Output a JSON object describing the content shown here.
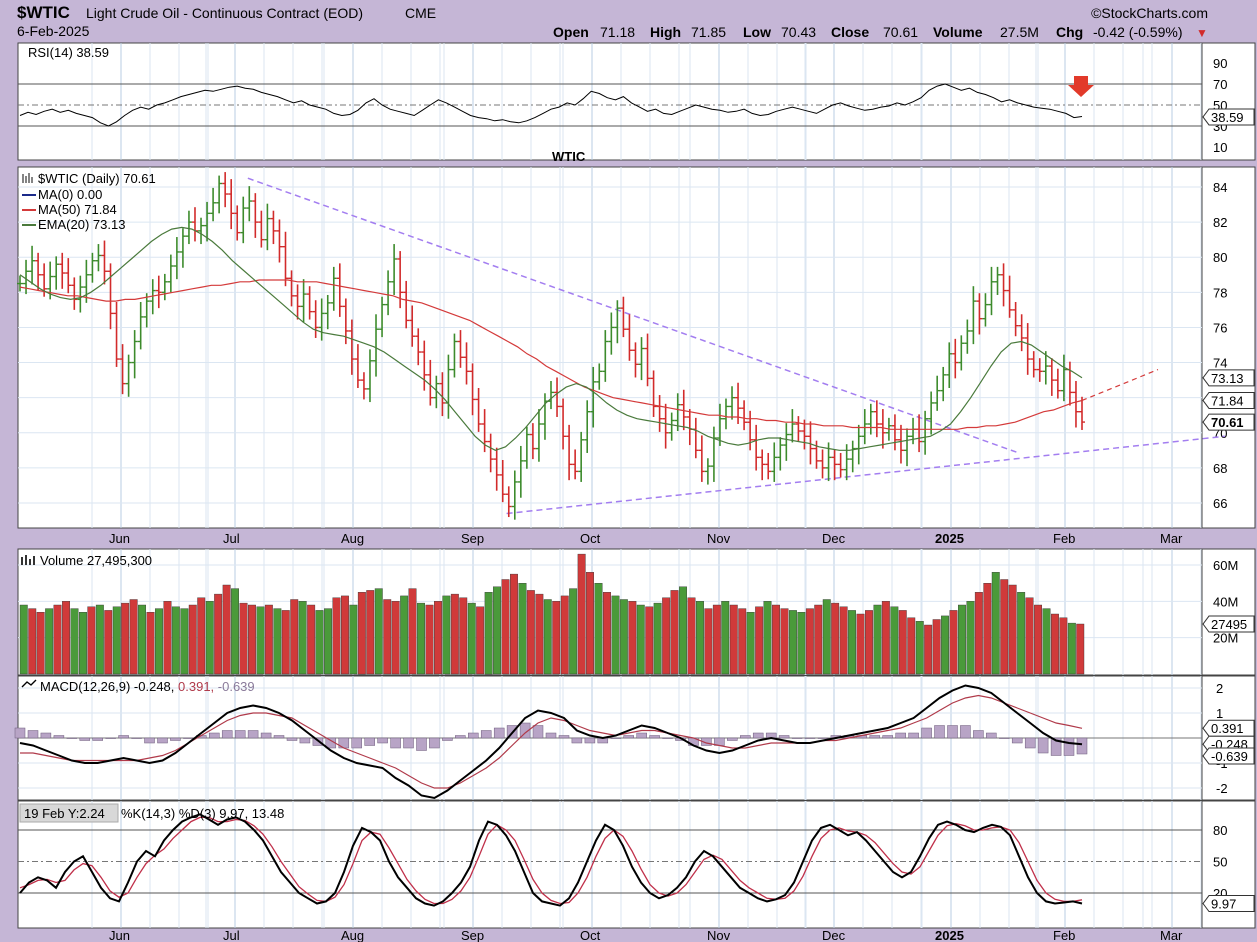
{
  "header": {
    "symbol": "$WTIC",
    "name": "Light Crude Oil - Continuous Contract (EOD)",
    "exchange": "CME",
    "brand": "©StockCharts.com",
    "date": "6-Feb-2025",
    "open_label": "Open",
    "open": "71.18",
    "high_label": "High",
    "high": "71.85",
    "low_label": "Low",
    "low": "70.43",
    "close_label": "Close",
    "close": "70.61",
    "volume_label": "Volume",
    "volume": "27.5M",
    "chg_label": "Chg",
    "chg": "-0.42 (-0.59%)",
    "chg_arrow": "▼"
  },
  "colors": {
    "up": "#3d8b2c",
    "down": "#d22b2b",
    "ma50": "#d43a3a",
    "ema20": "#4a7a3c",
    "trend": "#a37ef0",
    "rsi": "#000000",
    "watermark": "#5b8fd1",
    "signal": "#e23a2a"
  },
  "watermark": "WTIC",
  "chart_data": [
    {
      "panel": "rsi",
      "type": "line",
      "title": "RSI(14) 38.59",
      "last_value": "38.59",
      "ylim": [
        0,
        100
      ],
      "y_ticks": [
        "90",
        "70",
        "50",
        "30",
        "10"
      ],
      "reference_lines": [
        70,
        50,
        30
      ],
      "signal": "down-arrow",
      "values": [
        40,
        43,
        41,
        44,
        46,
        43,
        45,
        42,
        40,
        38,
        33,
        30,
        34,
        40,
        45,
        48,
        46,
        50,
        52,
        55,
        58,
        60,
        62,
        64,
        63,
        65,
        67,
        68,
        66,
        65,
        62,
        60,
        58,
        55,
        52,
        54,
        50,
        48,
        46,
        42,
        40,
        41,
        45,
        52,
        56,
        50,
        46,
        44,
        42,
        40,
        45,
        50,
        55,
        52,
        48,
        44,
        40,
        38,
        37,
        35,
        36,
        34,
        33,
        35,
        38,
        42,
        46,
        48,
        52,
        50,
        56,
        63,
        61,
        57,
        55,
        58,
        52,
        48,
        44,
        46,
        42,
        41,
        44,
        47,
        50,
        48,
        46,
        45,
        43,
        44,
        46,
        42,
        40,
        41,
        44,
        46,
        48,
        46,
        44,
        42,
        46,
        50,
        52,
        49,
        47,
        45,
        46,
        48,
        49,
        52,
        50,
        53,
        57,
        64,
        68,
        70,
        67,
        64,
        66,
        62,
        60,
        57,
        53,
        55,
        52,
        50,
        48,
        47,
        46,
        44,
        42,
        38,
        39
      ],
      "x_start": "2025-05-07",
      "x_end": "2025-02-06"
    },
    {
      "panel": "price",
      "type": "ohlc",
      "title": "$WTIC (Daily) 70.61",
      "legend": [
        "MA(0) 0.00",
        "MA(50) 71.84",
        "EMA(20) 73.13"
      ],
      "ylim": [
        65,
        85
      ],
      "y_ticks": [
        "84",
        "82",
        "80",
        "78",
        "76",
        "74",
        "72",
        "70",
        "68",
        "66"
      ],
      "last_labels": {
        "ema20": "73.13",
        "ma50": "71.84",
        "close": "70.61"
      },
      "x_labels": [
        "Jun",
        "Jul",
        "Aug",
        "Sep",
        "Oct",
        "Nov",
        "Dec",
        "2025",
        "Feb",
        "Mar"
      ],
      "closes": [
        78.5,
        79.2,
        79.8,
        79.0,
        78.2,
        78.9,
        79.6,
        79.1,
        78.4,
        77.6,
        78.3,
        79.0,
        79.8,
        80.1,
        79.2,
        76.8,
        74.2,
        72.8,
        74.0,
        75.2,
        76.6,
        77.5,
        78.1,
        78.0,
        78.6,
        79.5,
        80.3,
        81.2,
        82.0,
        81.5,
        81.8,
        82.5,
        83.1,
        84.2,
        83.6,
        82.5,
        81.4,
        82.8,
        83.2,
        82.0,
        81.0,
        82.2,
        81.5,
        80.6,
        78.8,
        77.8,
        77.2,
        77.9,
        76.9,
        76.0,
        76.8,
        77.4,
        78.8,
        77.2,
        75.8,
        74.2,
        73.0,
        72.5,
        74.1,
        75.9,
        77.3,
        78.6,
        79.9,
        78.0,
        76.4,
        75.5,
        74.6,
        73.3,
        72.0,
        72.8,
        71.7,
        73.6,
        75.2,
        74.3,
        73.5,
        71.9,
        70.5,
        69.5,
        68.5,
        67.6,
        66.5,
        65.8,
        67.2,
        68.4,
        69.9,
        69.1,
        70.5,
        71.8,
        72.3,
        71.5,
        69.8,
        68.2,
        67.8,
        69.6,
        71.2,
        72.9,
        73.5,
        75.2,
        76.0,
        77.1,
        75.9,
        74.7,
        73.9,
        74.8,
        73.1,
        71.5,
        70.8,
        70.0,
        70.7,
        71.6,
        70.9,
        70.2,
        69.0,
        67.8,
        68.1,
        69.7,
        70.8,
        71.5,
        72.0,
        71.4,
        70.6,
        69.6,
        68.6,
        68.2,
        67.8,
        68.6,
        69.3,
        69.9,
        70.5,
        70.1,
        69.8,
        69.1,
        68.4,
        68.0,
        68.6,
        68.2,
        67.9,
        68.5,
        69.1,
        69.8,
        70.5,
        71.2,
        70.5,
        70.0,
        70.4,
        69.6,
        69.0,
        69.8,
        70.2,
        69.5,
        70.8,
        71.7,
        72.4,
        73.3,
        74.5,
        74.0,
        75.1,
        75.8,
        77.5,
        76.5,
        77.3,
        78.6,
        79.0,
        78.1,
        77.0,
        76.1,
        75.4,
        74.2,
        73.6,
        73.5,
        73.8,
        73.0,
        72.4,
        73.6,
        72.3,
        71.2,
        70.61
      ],
      "ma50": [
        78.3,
        78.2,
        78.1,
        78.0,
        77.9,
        77.8,
        77.8,
        77.7,
        77.6,
        77.5,
        77.5,
        77.6,
        77.6,
        77.7,
        77.8,
        77.9,
        78.0,
        78.1,
        78.2,
        78.3,
        78.4,
        78.4,
        78.5,
        78.6,
        78.6,
        78.7,
        78.7,
        78.7,
        78.7,
        78.6,
        78.6,
        78.6,
        78.5,
        78.4,
        78.3,
        78.2,
        78.1,
        78.0,
        77.9,
        77.8,
        77.6,
        77.5,
        77.4,
        77.2,
        77.0,
        76.8,
        76.6,
        76.4,
        76.1,
        75.8,
        75.5,
        75.2,
        74.9,
        74.5,
        74.2,
        73.8,
        73.5,
        73.2,
        72.9,
        72.6,
        72.4,
        72.2,
        72.0,
        71.9,
        71.8,
        71.7,
        71.6,
        71.5,
        71.4,
        71.3,
        71.2,
        71.1,
        71.0,
        71.0,
        70.9,
        70.9,
        70.8,
        70.8,
        70.7,
        70.7,
        70.6,
        70.6,
        70.5,
        70.5,
        70.4,
        70.4,
        70.4,
        70.3,
        70.3,
        70.3,
        70.3,
        70.2,
        70.2,
        70.2,
        70.2,
        70.2,
        70.2,
        70.2,
        70.2,
        70.3,
        70.3,
        70.4,
        70.4,
        70.5,
        70.6,
        70.8,
        71.0,
        71.2,
        71.3,
        71.5,
        71.7,
        71.84
      ],
      "ema20": [
        79.0,
        78.6,
        78.2,
        77.9,
        77.7,
        77.6,
        77.7,
        78.0,
        78.4,
        78.9,
        79.4,
        79.9,
        80.4,
        80.9,
        81.3,
        81.6,
        81.7,
        81.6,
        81.3,
        80.9,
        80.4,
        79.8,
        79.3,
        78.8,
        78.3,
        77.8,
        77.3,
        76.8,
        76.3,
        75.9,
        75.7,
        75.6,
        75.5,
        75.3,
        75.1,
        74.9,
        74.6,
        74.2,
        73.8,
        73.4,
        73.0,
        72.5,
        71.9,
        71.2,
        70.5,
        69.8,
        69.3,
        69.0,
        69.2,
        69.7,
        70.3,
        71.0,
        71.7,
        72.2,
        72.6,
        72.8,
        72.6,
        72.2,
        71.7,
        71.3,
        71.0,
        70.8,
        70.7,
        70.6,
        70.5,
        70.4,
        70.3,
        70.1,
        69.8,
        69.6,
        69.4,
        69.3,
        69.4,
        69.6,
        69.7,
        69.7,
        69.6,
        69.5,
        69.4,
        69.2,
        69.1,
        69.0,
        69.0,
        69.1,
        69.2,
        69.3,
        69.4,
        69.5,
        69.6,
        69.7,
        69.8,
        70.1,
        70.5,
        71.2,
        72.0,
        72.9,
        73.8,
        74.6,
        75.1,
        75.2,
        75.0,
        74.6,
        74.2,
        73.8,
        73.5,
        73.13
      ],
      "trendlines": [
        {
          "from": [
            "2024-07-05",
            84.5
          ],
          "to": [
            "2025-01-20",
            68.9
          ]
        },
        {
          "from": [
            "2024-09-10",
            65.4
          ],
          "to": [
            "2025-03-15",
            69.8
          ]
        }
      ]
    },
    {
      "panel": "volume",
      "type": "bar",
      "title": "Volume 27,495,300",
      "last_label": "27495",
      "ylim": [
        0,
        70
      ],
      "y_ticks": [
        "60M",
        "40M",
        "20M"
      ],
      "values_millions": [
        38,
        36,
        34,
        36,
        38,
        40,
        36,
        34,
        37,
        38,
        35,
        37,
        39,
        41,
        38,
        34,
        36,
        40,
        37,
        36,
        38,
        42,
        40,
        44,
        49,
        47,
        39,
        38,
        37,
        38,
        36,
        35,
        41,
        40,
        38,
        35,
        36,
        42,
        43,
        38,
        45,
        46,
        47,
        41,
        40,
        43,
        47,
        39,
        38,
        40,
        43,
        44,
        42,
        39,
        37,
        45,
        48,
        52,
        55,
        50,
        46,
        44,
        41,
        40,
        43,
        47,
        66,
        56,
        50,
        45,
        43,
        41,
        40,
        38,
        37,
        39,
        42,
        46,
        48,
        42,
        40,
        36,
        38,
        40,
        38,
        36,
        34,
        37,
        40,
        38,
        36,
        35,
        34,
        36,
        38,
        41,
        39,
        37,
        35,
        33,
        35,
        38,
        40,
        37,
        35,
        31,
        29,
        27,
        30,
        32,
        35,
        38,
        40,
        45,
        50,
        56,
        52,
        49,
        45,
        42,
        38,
        36,
        33,
        31,
        28,
        27.5
      ],
      "up_down": "uddudduudududdududuuddudduddududduduuddudduddududdudduduuddudduddudduduudududdududduddududduuddudduddududdudduduuddudduddudduduududu"
    },
    {
      "panel": "macd",
      "type": "line",
      "title": "MACD(12,26,9) -0.248, 0.391, -0.639",
      "legend": [
        "MACD(12,26,9)",
        "-0.248",
        "0.391",
        "-0.639"
      ],
      "last_labels": [
        "0.391",
        "-0.248",
        "-0.639"
      ],
      "ylim": [
        -2.6,
        2.4
      ],
      "y_ticks": [
        "2",
        "1",
        "0",
        "-1",
        "-2"
      ],
      "macd": [
        -0.2,
        -0.3,
        -0.5,
        -0.7,
        -0.9,
        -1.0,
        -1.0,
        -0.9,
        -0.8,
        -0.9,
        -1.0,
        -0.9,
        -0.6,
        -0.2,
        0.2,
        0.6,
        1.0,
        1.2,
        1.3,
        1.2,
        1.0,
        0.7,
        0.3,
        -0.1,
        -0.5,
        -0.8,
        -1.0,
        -1.1,
        -1.2,
        -1.6,
        -1.9,
        -2.3,
        -2.4,
        -2.1,
        -1.7,
        -1.3,
        -0.9,
        -0.4,
        0.2,
        0.8,
        1.1,
        1.0,
        0.8,
        0.3,
        0.1,
        0.0,
        0.1,
        0.3,
        0.5,
        0.4,
        0.2,
        0.0,
        -0.3,
        -0.5,
        -0.6,
        -0.5,
        -0.3,
        -0.1,
        0.0,
        -0.1,
        -0.2,
        -0.2,
        -0.1,
        0.0,
        0.1,
        0.2,
        0.3,
        0.4,
        0.6,
        0.8,
        1.2,
        1.6,
        1.9,
        2.1,
        2.0,
        1.8,
        1.4,
        1.0,
        0.6,
        0.2,
        -0.1,
        -0.2,
        -0.25
      ],
      "signal": [
        -0.6,
        -0.6,
        -0.7,
        -0.8,
        -0.9,
        -0.9,
        -0.9,
        -0.9,
        -0.9,
        -0.9,
        -0.8,
        -0.7,
        -0.5,
        -0.2,
        0.1,
        0.4,
        0.7,
        0.9,
        1.0,
        1.0,
        0.9,
        0.8,
        0.5,
        0.2,
        -0.1,
        -0.4,
        -0.6,
        -0.8,
        -1.0,
        -1.2,
        -1.5,
        -1.8,
        -2.0,
        -2.0,
        -1.8,
        -1.5,
        -1.2,
        -0.8,
        -0.3,
        0.2,
        0.6,
        0.8,
        0.7,
        0.5,
        0.3,
        0.2,
        0.1,
        0.2,
        0.3,
        0.3,
        0.2,
        0.1,
        0.0,
        -0.2,
        -0.3,
        -0.4,
        -0.4,
        -0.3,
        -0.2,
        -0.2,
        -0.2,
        -0.2,
        -0.1,
        -0.1,
        0.0,
        0.1,
        0.2,
        0.3,
        0.4,
        0.6,
        0.8,
        1.1,
        1.4,
        1.6,
        1.7,
        1.6,
        1.4,
        1.2,
        1.0,
        0.8,
        0.6,
        0.5,
        0.39
      ],
      "histogram": [
        0.4,
        0.3,
        0.2,
        0.1,
        0.0,
        -0.1,
        -0.1,
        0.0,
        0.1,
        0.0,
        -0.2,
        -0.2,
        -0.1,
        0.0,
        0.1,
        0.2,
        0.3,
        0.3,
        0.3,
        0.2,
        0.1,
        -0.1,
        -0.2,
        -0.3,
        -0.4,
        -0.4,
        -0.4,
        -0.3,
        -0.2,
        -0.4,
        -0.4,
        -0.5,
        -0.4,
        -0.1,
        0.1,
        0.2,
        0.3,
        0.4,
        0.5,
        0.6,
        0.5,
        0.2,
        0.1,
        -0.2,
        -0.2,
        -0.2,
        0.0,
        0.1,
        0.2,
        0.1,
        0.0,
        -0.1,
        -0.3,
        -0.3,
        -0.3,
        -0.1,
        0.1,
        0.2,
        0.2,
        0.1,
        0.0,
        0.0,
        0.0,
        0.1,
        0.1,
        0.1,
        0.1,
        0.1,
        0.2,
        0.2,
        0.4,
        0.5,
        0.5,
        0.5,
        0.3,
        0.2,
        0.0,
        -0.2,
        -0.4,
        -0.6,
        -0.7,
        -0.7,
        -0.64
      ]
    },
    {
      "panel": "stochastic",
      "type": "line",
      "tooltip": "19 Feb Y:2.24",
      "title": "%K(14,3) %D(3) 9.97, 13.48",
      "legend_k": "%K(14,3)",
      "legend_d": "%D(3)",
      "values_text": "9.97, 13.48",
      "last_label": "9.97",
      "ylim": [
        0,
        100
      ],
      "y_ticks": [
        "80",
        "50",
        "20"
      ],
      "reference_lines": [
        80,
        50,
        20
      ],
      "k": [
        20,
        30,
        35,
        32,
        25,
        40,
        50,
        55,
        40,
        25,
        15,
        12,
        30,
        50,
        60,
        55,
        70,
        80,
        88,
        92,
        95,
        90,
        85,
        90,
        92,
        88,
        80,
        70,
        55,
        40,
        30,
        20,
        15,
        10,
        12,
        20,
        40,
        65,
        82,
        78,
        70,
        50,
        35,
        25,
        15,
        10,
        8,
        12,
        20,
        30,
        45,
        70,
        88,
        85,
        75,
        60,
        40,
        20,
        12,
        10,
        8,
        15,
        30,
        50,
        70,
        85,
        80,
        65,
        45,
        30,
        20,
        15,
        18,
        25,
        35,
        50,
        60,
        55,
        45,
        35,
        25,
        20,
        15,
        12,
        14,
        18,
        30,
        50,
        70,
        82,
        85,
        80,
        75,
        78,
        70,
        60,
        50,
        40,
        35,
        40,
        55,
        72,
        85,
        88,
        85,
        80,
        78,
        82,
        85,
        83,
        75,
        55,
        35,
        20,
        12,
        10,
        11,
        12,
        9.97
      ],
      "d": [
        25,
        28,
        32,
        33,
        30,
        32,
        42,
        48,
        46,
        35,
        22,
        16,
        20,
        35,
        48,
        56,
        62,
        72,
        80,
        88,
        92,
        92,
        88,
        88,
        90,
        89,
        84,
        76,
        64,
        50,
        38,
        26,
        19,
        13,
        12,
        16,
        28,
        48,
        70,
        78,
        76,
        63,
        48,
        33,
        22,
        14,
        10,
        10,
        14,
        22,
        35,
        55,
        76,
        85,
        80,
        70,
        52,
        33,
        20,
        13,
        10,
        11,
        20,
        35,
        55,
        72,
        80,
        74,
        60,
        43,
        28,
        20,
        17,
        20,
        28,
        40,
        52,
        56,
        52,
        42,
        32,
        25,
        20,
        15,
        14,
        15,
        22,
        36,
        55,
        72,
        80,
        82,
        79,
        78,
        75,
        68,
        58,
        48,
        40,
        38,
        45,
        60,
        75,
        84,
        86,
        84,
        80,
        80,
        82,
        83,
        80,
        68,
        50,
        32,
        20,
        14,
        12,
        12,
        13.48
      ],
      "x_labels": [
        "Jun",
        "Jul",
        "Aug",
        "Sep",
        "Oct",
        "Nov",
        "Dec",
        "2025",
        "Feb",
        "Mar"
      ]
    }
  ]
}
